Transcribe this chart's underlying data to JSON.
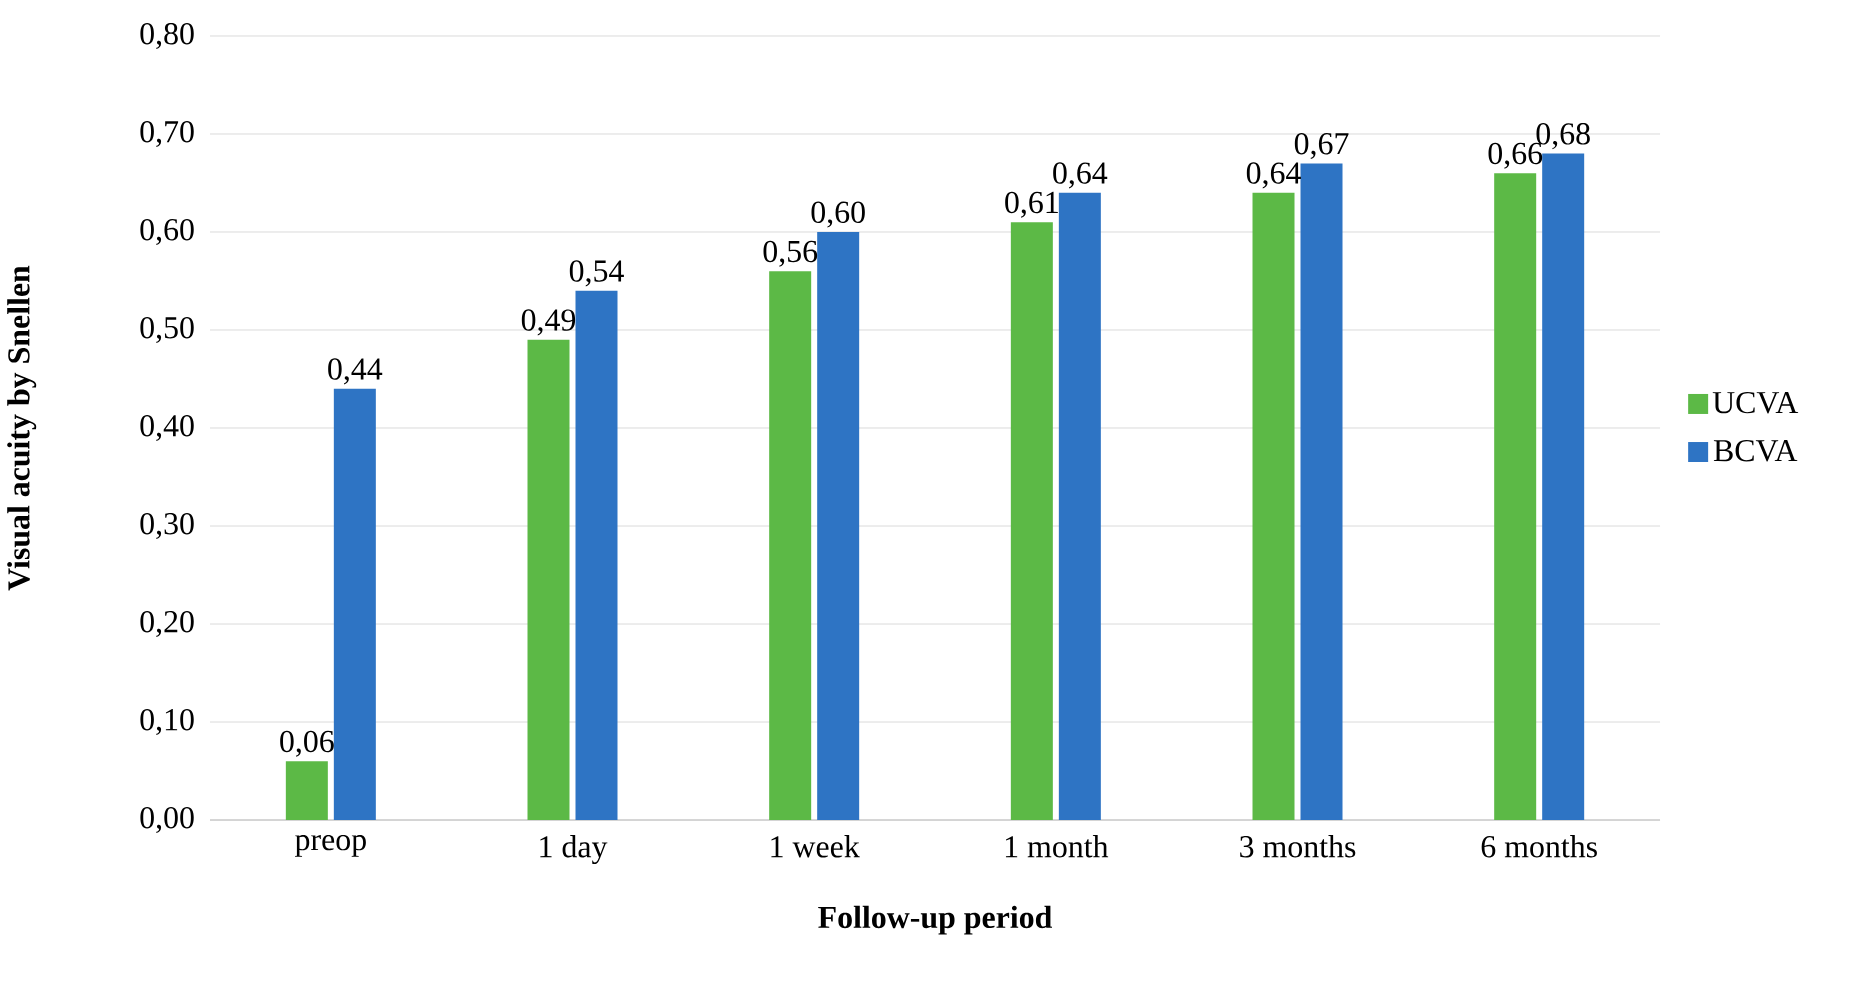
{
  "chart_data": {
    "type": "bar",
    "xlabel": "Follow-up period",
    "ylabel": "Visual acuity by Snellen",
    "categories": [
      "preop",
      "1 day",
      "1 week",
      "1 month",
      "3 months",
      "6 months"
    ],
    "series": [
      {
        "name": "UCVA",
        "color": "#5cb946",
        "values": [
          0.06,
          0.49,
          0.56,
          0.61,
          0.64,
          0.66
        ],
        "value_labels": [
          "0,06",
          "0,49",
          "0,56",
          "0,61",
          "0,64",
          "0,66"
        ]
      },
      {
        "name": "BCVA",
        "color": "#2e74c4",
        "values": [
          0.44,
          0.54,
          0.6,
          0.64,
          0.67,
          0.68
        ],
        "value_labels": [
          "0,44",
          "0,54",
          "0,60",
          "0,64",
          "0,67",
          "0,68"
        ]
      }
    ],
    "ylim": [
      0,
      0.8
    ],
    "yticks": [
      {
        "value": 0,
        "label": "0,00"
      },
      {
        "value": 0.1,
        "label": "0,10"
      },
      {
        "value": 0.2,
        "label": "0,20"
      },
      {
        "value": 0.3,
        "label": "0,30"
      },
      {
        "value": 0.4,
        "label": "0,40"
      },
      {
        "value": 0.5,
        "label": "0,50"
      },
      {
        "value": 0.6,
        "label": "0,60"
      },
      {
        "value": 0.7,
        "label": "0,70"
      },
      {
        "value": 0.8,
        "label": "0,80"
      }
    ],
    "grid": "y",
    "legend": "right"
  }
}
